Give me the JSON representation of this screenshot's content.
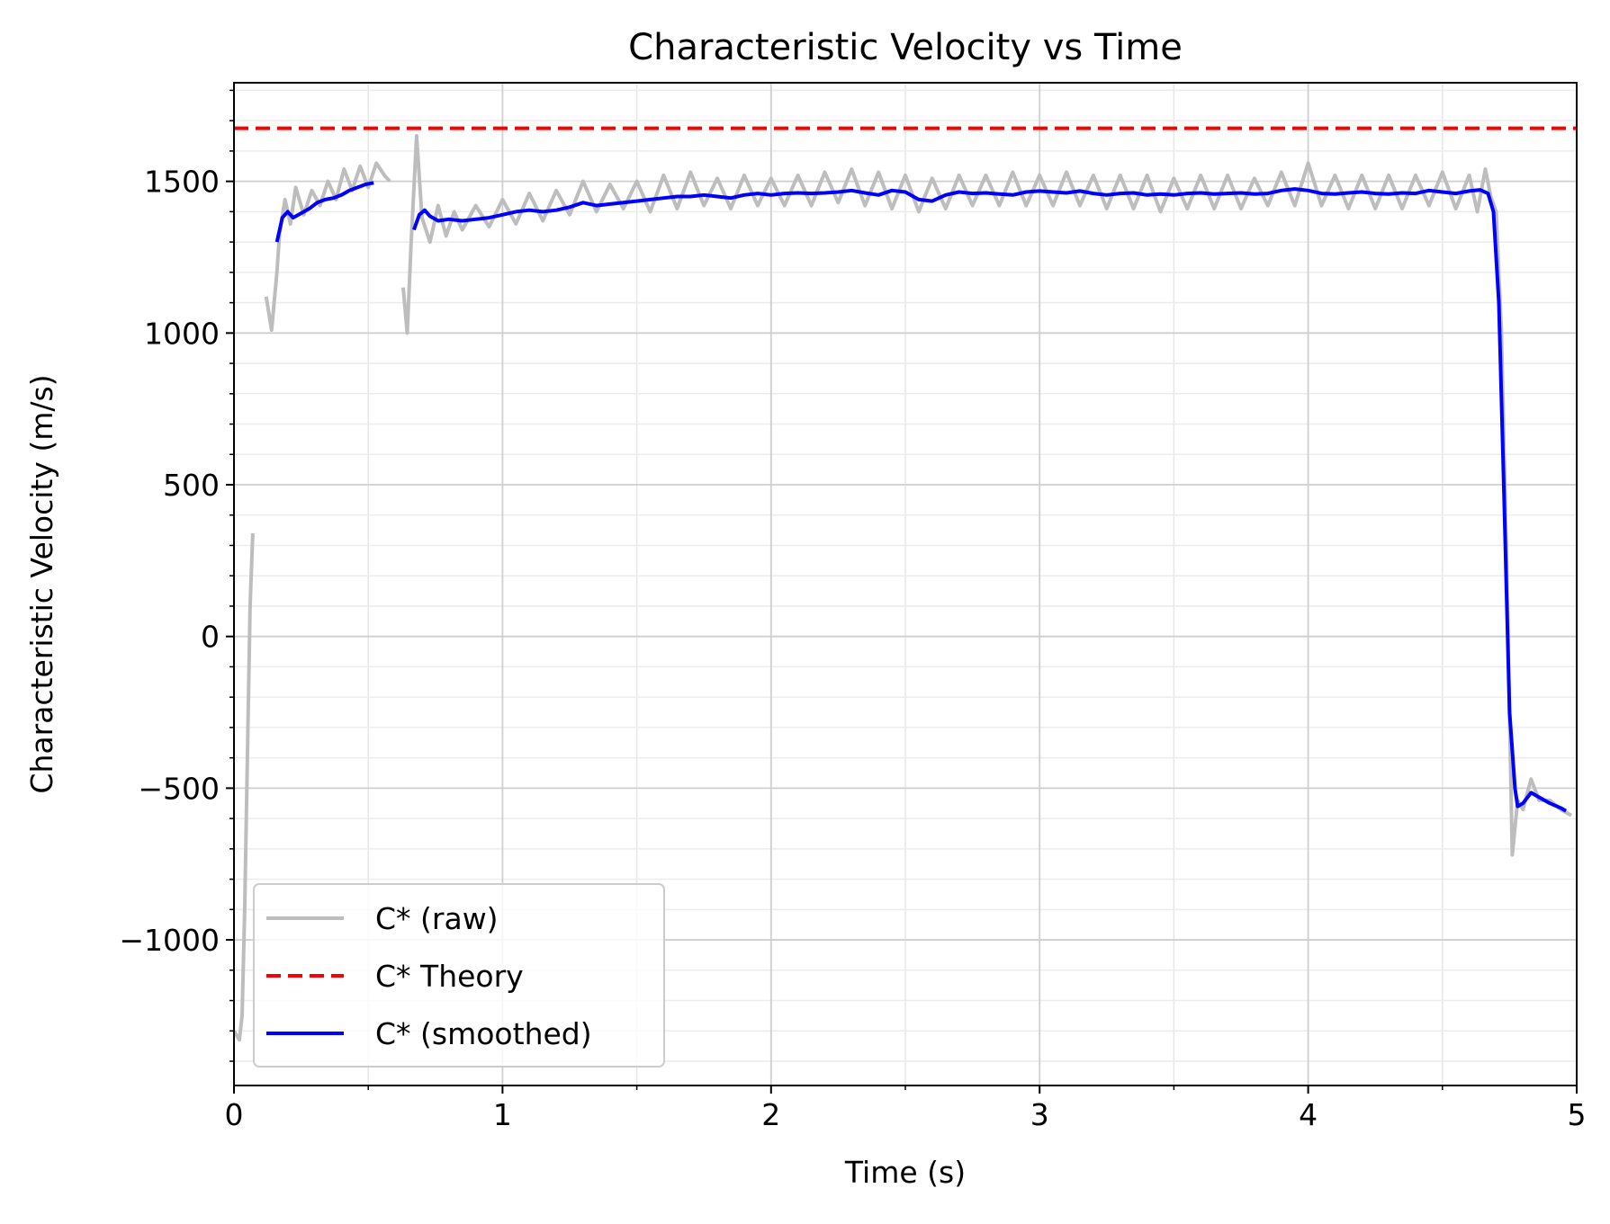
{
  "chart_data": {
    "type": "line",
    "title": "Characteristic Velocity vs Time",
    "xlabel": "Time (s)",
    "ylabel": "Characteristic Velocity (m/s)",
    "xlim": [
      0,
      5
    ],
    "ylim": [
      -1480,
      1825
    ],
    "x_ticks": [
      0,
      1,
      2,
      3,
      4,
      5
    ],
    "x_tick_labels": [
      "0",
      "1",
      "2",
      "3",
      "4",
      "5"
    ],
    "y_ticks": [
      -1000,
      -500,
      0,
      500,
      1000,
      1500
    ],
    "y_tick_labels": [
      "−1000",
      "−500",
      "0",
      "500",
      "1000",
      "1500"
    ],
    "grid": true,
    "legend_position": "lower-left",
    "series": [
      {
        "name": "C* (raw)",
        "color": "#bdbdbd",
        "style": "solid",
        "segments": [
          [
            [
              0.0,
              -1300
            ],
            [
              0.02,
              -1330
            ],
            [
              0.03,
              -1250
            ],
            [
              0.04,
              -900
            ],
            [
              0.05,
              -400
            ],
            [
              0.06,
              100
            ],
            [
              0.07,
              340
            ]
          ],
          [
            [
              0.12,
              1120
            ],
            [
              0.14,
              1010
            ],
            [
              0.16,
              1200
            ],
            [
              0.17,
              1330
            ],
            [
              0.19,
              1440
            ],
            [
              0.21,
              1360
            ],
            [
              0.23,
              1480
            ],
            [
              0.26,
              1390
            ],
            [
              0.29,
              1470
            ],
            [
              0.32,
              1420
            ],
            [
              0.35,
              1500
            ],
            [
              0.38,
              1440
            ],
            [
              0.41,
              1540
            ],
            [
              0.44,
              1470
            ],
            [
              0.47,
              1550
            ],
            [
              0.5,
              1480
            ],
            [
              0.53,
              1560
            ],
            [
              0.56,
              1520
            ],
            [
              0.58,
              1500
            ]
          ],
          [
            [
              0.63,
              1150
            ],
            [
              0.645,
              1000
            ],
            [
              0.66,
              1300
            ],
            [
              0.68,
              1650
            ],
            [
              0.7,
              1380
            ],
            [
              0.73,
              1300
            ],
            [
              0.76,
              1420
            ],
            [
              0.79,
              1320
            ],
            [
              0.82,
              1400
            ],
            [
              0.85,
              1340
            ],
            [
              0.9,
              1420
            ],
            [
              0.95,
              1350
            ],
            [
              1.0,
              1440
            ],
            [
              1.05,
              1360
            ],
            [
              1.1,
              1460
            ],
            [
              1.15,
              1370
            ],
            [
              1.2,
              1470
            ],
            [
              1.25,
              1390
            ],
            [
              1.3,
              1500
            ],
            [
              1.35,
              1400
            ],
            [
              1.4,
              1490
            ],
            [
              1.45,
              1410
            ],
            [
              1.5,
              1500
            ],
            [
              1.55,
              1400
            ],
            [
              1.6,
              1520
            ],
            [
              1.65,
              1410
            ],
            [
              1.7,
              1530
            ],
            [
              1.75,
              1420
            ],
            [
              1.8,
              1510
            ],
            [
              1.85,
              1410
            ],
            [
              1.9,
              1520
            ],
            [
              1.95,
              1420
            ],
            [
              2.0,
              1510
            ],
            [
              2.05,
              1420
            ],
            [
              2.1,
              1520
            ],
            [
              2.15,
              1420
            ],
            [
              2.2,
              1530
            ],
            [
              2.25,
              1430
            ],
            [
              2.3,
              1540
            ],
            [
              2.35,
              1420
            ],
            [
              2.4,
              1530
            ],
            [
              2.45,
              1410
            ],
            [
              2.5,
              1520
            ],
            [
              2.55,
              1400
            ],
            [
              2.6,
              1510
            ],
            [
              2.65,
              1410
            ],
            [
              2.7,
              1520
            ],
            [
              2.75,
              1420
            ],
            [
              2.8,
              1520
            ],
            [
              2.85,
              1420
            ],
            [
              2.9,
              1530
            ],
            [
              2.95,
              1420
            ],
            [
              3.0,
              1520
            ],
            [
              3.05,
              1420
            ],
            [
              3.1,
              1530
            ],
            [
              3.15,
              1420
            ],
            [
              3.2,
              1520
            ],
            [
              3.25,
              1410
            ],
            [
              3.3,
              1520
            ],
            [
              3.35,
              1410
            ],
            [
              3.4,
              1520
            ],
            [
              3.45,
              1400
            ],
            [
              3.5,
              1510
            ],
            [
              3.55,
              1410
            ],
            [
              3.6,
              1520
            ],
            [
              3.65,
              1410
            ],
            [
              3.7,
              1520
            ],
            [
              3.75,
              1410
            ],
            [
              3.8,
              1510
            ],
            [
              3.85,
              1420
            ],
            [
              3.9,
              1530
            ],
            [
              3.95,
              1420
            ],
            [
              4.0,
              1560
            ],
            [
              4.05,
              1420
            ],
            [
              4.1,
              1520
            ],
            [
              4.15,
              1410
            ],
            [
              4.2,
              1520
            ],
            [
              4.25,
              1410
            ],
            [
              4.3,
              1520
            ],
            [
              4.35,
              1410
            ],
            [
              4.4,
              1520
            ],
            [
              4.45,
              1420
            ],
            [
              4.5,
              1530
            ],
            [
              4.55,
              1410
            ],
            [
              4.6,
              1520
            ],
            [
              4.63,
              1400
            ],
            [
              4.66,
              1540
            ],
            [
              4.68,
              1450
            ],
            [
              4.7,
              1400
            ],
            [
              4.72,
              1000
            ],
            [
              4.74,
              200
            ],
            [
              4.76,
              -720
            ],
            [
              4.78,
              -540
            ],
            [
              4.8,
              -570
            ],
            [
              4.83,
              -470
            ],
            [
              4.86,
              -540
            ],
            [
              4.9,
              -540
            ],
            [
              4.94,
              -570
            ],
            [
              4.98,
              -590
            ]
          ]
        ]
      },
      {
        "name": "C* Theory",
        "color": "#ff0000",
        "style": "dashed",
        "y": 1675
      },
      {
        "name": "C* (smoothed)",
        "color": "#0000ff",
        "style": "solid",
        "segments": [
          [
            [
              0.16,
              1300
            ],
            [
              0.18,
              1380
            ],
            [
              0.2,
              1400
            ],
            [
              0.22,
              1380
            ],
            [
              0.25,
              1395
            ],
            [
              0.28,
              1410
            ],
            [
              0.31,
              1430
            ],
            [
              0.34,
              1440
            ],
            [
              0.37,
              1445
            ],
            [
              0.4,
              1455
            ],
            [
              0.43,
              1470
            ],
            [
              0.46,
              1480
            ],
            [
              0.49,
              1490
            ],
            [
              0.52,
              1495
            ]
          ],
          [
            [
              0.67,
              1340
            ],
            [
              0.69,
              1390
            ],
            [
              0.71,
              1405
            ],
            [
              0.73,
              1385
            ],
            [
              0.76,
              1370
            ],
            [
              0.8,
              1375
            ],
            [
              0.85,
              1370
            ],
            [
              0.9,
              1375
            ],
            [
              0.95,
              1380
            ],
            [
              1.0,
              1390
            ],
            [
              1.05,
              1400
            ],
            [
              1.1,
              1405
            ],
            [
              1.15,
              1400
            ],
            [
              1.2,
              1405
            ],
            [
              1.25,
              1415
            ],
            [
              1.3,
              1430
            ],
            [
              1.35,
              1420
            ],
            [
              1.4,
              1425
            ],
            [
              1.45,
              1430
            ],
            [
              1.5,
              1435
            ],
            [
              1.55,
              1440
            ],
            [
              1.6,
              1445
            ],
            [
              1.65,
              1450
            ],
            [
              1.7,
              1450
            ],
            [
              1.75,
              1455
            ],
            [
              1.8,
              1450
            ],
            [
              1.85,
              1445
            ],
            [
              1.9,
              1455
            ],
            [
              1.95,
              1460
            ],
            [
              2.0,
              1455
            ],
            [
              2.05,
              1460
            ],
            [
              2.1,
              1462
            ],
            [
              2.15,
              1460
            ],
            [
              2.2,
              1462
            ],
            [
              2.25,
              1465
            ],
            [
              2.3,
              1470
            ],
            [
              2.35,
              1462
            ],
            [
              2.4,
              1455
            ],
            [
              2.45,
              1470
            ],
            [
              2.5,
              1465
            ],
            [
              2.55,
              1440
            ],
            [
              2.6,
              1435
            ],
            [
              2.65,
              1455
            ],
            [
              2.7,
              1465
            ],
            [
              2.75,
              1460
            ],
            [
              2.8,
              1462
            ],
            [
              2.85,
              1458
            ],
            [
              2.9,
              1455
            ],
            [
              2.95,
              1465
            ],
            [
              3.0,
              1468
            ],
            [
              3.05,
              1465
            ],
            [
              3.1,
              1462
            ],
            [
              3.15,
              1468
            ],
            [
              3.2,
              1460
            ],
            [
              3.25,
              1455
            ],
            [
              3.3,
              1460
            ],
            [
              3.35,
              1462
            ],
            [
              3.4,
              1455
            ],
            [
              3.45,
              1458
            ],
            [
              3.5,
              1455
            ],
            [
              3.55,
              1460
            ],
            [
              3.6,
              1462
            ],
            [
              3.65,
              1458
            ],
            [
              3.7,
              1460
            ],
            [
              3.75,
              1462
            ],
            [
              3.8,
              1458
            ],
            [
              3.85,
              1460
            ],
            [
              3.9,
              1470
            ],
            [
              3.95,
              1475
            ],
            [
              4.0,
              1470
            ],
            [
              4.05,
              1460
            ],
            [
              4.1,
              1458
            ],
            [
              4.15,
              1462
            ],
            [
              4.2,
              1465
            ],
            [
              4.25,
              1460
            ],
            [
              4.3,
              1458
            ],
            [
              4.35,
              1462
            ],
            [
              4.4,
              1460
            ],
            [
              4.45,
              1470
            ],
            [
              4.5,
              1465
            ],
            [
              4.55,
              1460
            ],
            [
              4.6,
              1468
            ],
            [
              4.64,
              1472
            ],
            [
              4.67,
              1460
            ],
            [
              4.69,
              1400
            ],
            [
              4.71,
              1100
            ],
            [
              4.73,
              450
            ],
            [
              4.75,
              -250
            ],
            [
              4.77,
              -500
            ],
            [
              4.78,
              -560
            ],
            [
              4.8,
              -550
            ],
            [
              4.83,
              -515
            ],
            [
              4.86,
              -530
            ],
            [
              4.9,
              -550
            ],
            [
              4.94,
              -565
            ],
            [
              4.96,
              -575
            ]
          ]
        ]
      }
    ]
  }
}
